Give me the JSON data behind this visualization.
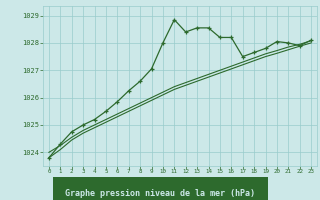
{
  "xlabel": "Graphe pression niveau de la mer (hPa)",
  "x": [
    0,
    1,
    2,
    3,
    4,
    5,
    6,
    7,
    8,
    9,
    10,
    11,
    12,
    13,
    14,
    15,
    16,
    17,
    18,
    19,
    20,
    21,
    22,
    23
  ],
  "y_main": [
    1023.8,
    1024.3,
    1024.75,
    1025.0,
    1025.2,
    1025.5,
    1025.85,
    1026.25,
    1026.6,
    1027.05,
    1028.0,
    1028.85,
    1028.4,
    1028.55,
    1028.55,
    1028.2,
    1028.2,
    1027.5,
    1027.65,
    1027.8,
    1028.05,
    1028.0,
    1027.9,
    1028.1
  ],
  "y_trend1": [
    1024.0,
    1024.25,
    1024.55,
    1024.8,
    1025.0,
    1025.2,
    1025.4,
    1025.6,
    1025.8,
    1026.0,
    1026.2,
    1026.4,
    1026.55,
    1026.7,
    1026.85,
    1027.0,
    1027.15,
    1027.3,
    1027.45,
    1027.6,
    1027.72,
    1027.85,
    1027.95,
    1028.08
  ],
  "y_trend2": [
    1023.8,
    1024.1,
    1024.45,
    1024.7,
    1024.9,
    1025.1,
    1025.3,
    1025.5,
    1025.7,
    1025.9,
    1026.1,
    1026.3,
    1026.45,
    1026.6,
    1026.75,
    1026.9,
    1027.05,
    1027.2,
    1027.35,
    1027.5,
    1027.62,
    1027.75,
    1027.88,
    1028.0
  ],
  "line_color": "#2d6a2d",
  "bg_color": "#cce8e8",
  "grid_color": "#99cccc",
  "label_bg": "#2d6a2d",
  "label_fg": "#cce8e8",
  "ylim_min": 1023.5,
  "ylim_max": 1029.35,
  "yticks": [
    1024,
    1025,
    1026,
    1027,
    1028,
    1029
  ],
  "xticks": [
    0,
    1,
    2,
    3,
    4,
    5,
    6,
    7,
    8,
    9,
    10,
    11,
    12,
    13,
    14,
    15,
    16,
    17,
    18,
    19,
    20,
    21,
    22,
    23
  ]
}
